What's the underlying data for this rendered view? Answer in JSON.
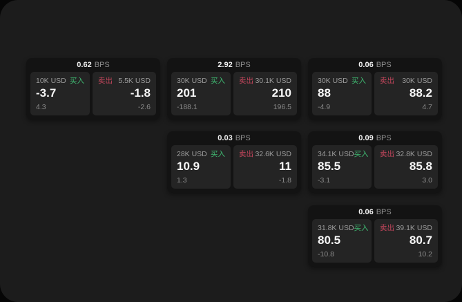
{
  "labels": {
    "bps": "BPS",
    "buy": "买入",
    "sell": "卖出"
  },
  "colors": {
    "buy_green": "#3fb871",
    "sell_red": "#c4465c",
    "panel_bg": "#1c1c1c",
    "card_bg": "#131313",
    "cell_bg": "#242424"
  },
  "cards": [
    {
      "bps": "0.62",
      "buy": {
        "amount": "10K USD",
        "price": "-3.7",
        "change": "4.3"
      },
      "sell": {
        "amount": "5.5K USD",
        "price": "-1.8",
        "change": "-2.6"
      }
    },
    {
      "bps": "2.92",
      "buy": {
        "amount": "30K USD",
        "price": "201",
        "change": "-188.1"
      },
      "sell": {
        "amount": "30.1K USD",
        "price": "210",
        "change": "196.5"
      }
    },
    {
      "bps": "0.06",
      "buy": {
        "amount": "30K USD",
        "price": "88",
        "change": "-4.9"
      },
      "sell": {
        "amount": "30K USD",
        "price": "88.2",
        "change": "4.7"
      }
    },
    {
      "bps": "0.03",
      "buy": {
        "amount": "28K USD",
        "price": "10.9",
        "change": "1.3"
      },
      "sell": {
        "amount": "32.6K USD",
        "price": "11",
        "change": "-1.8"
      }
    },
    {
      "bps": "0.09",
      "buy": {
        "amount": "34.1K USD",
        "price": "85.5",
        "change": "-3.1"
      },
      "sell": {
        "amount": "32.8K USD",
        "price": "85.8",
        "change": "3.0"
      }
    },
    {
      "bps": "0.06",
      "buy": {
        "amount": "31.8K USD",
        "price": "80.5",
        "change": "-10.8"
      },
      "sell": {
        "amount": "39.1K USD",
        "price": "80.7",
        "change": "10.2"
      }
    }
  ]
}
